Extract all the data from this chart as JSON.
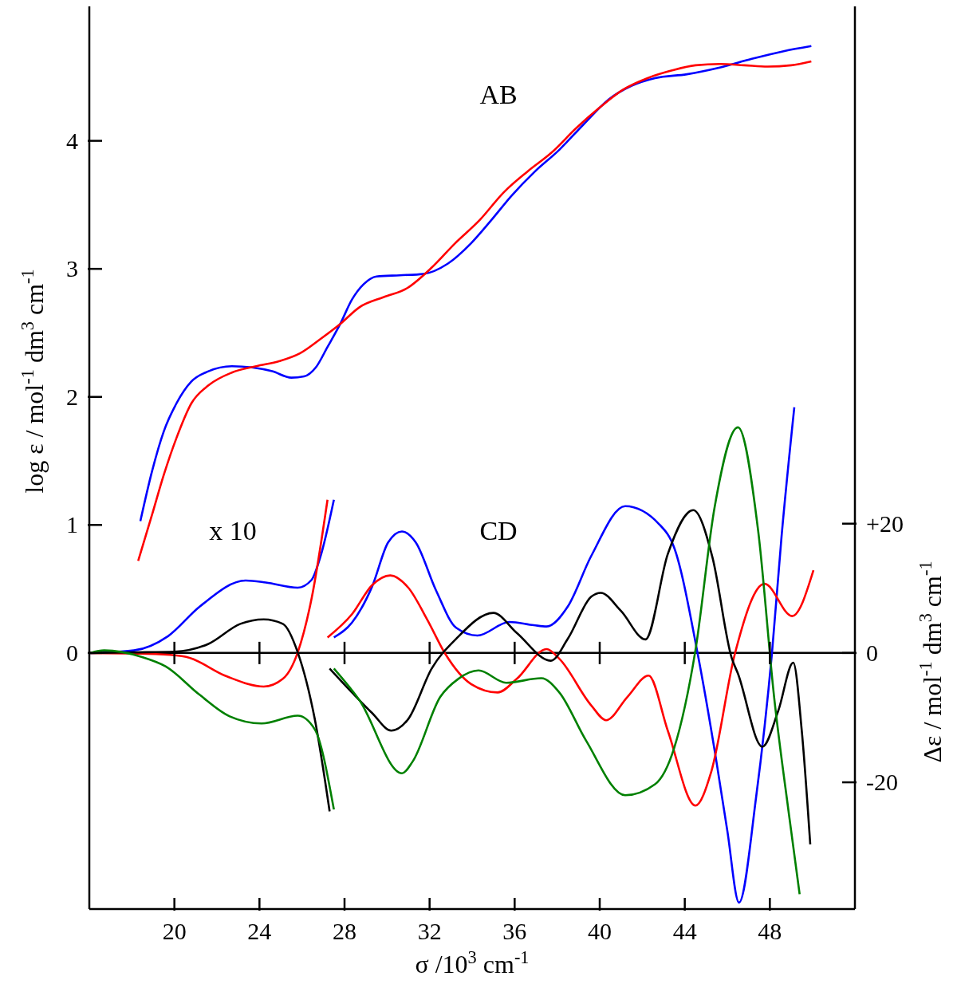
{
  "chart_data": {
    "type": "line",
    "xlabel": "σ /10$^{3}$ cm$^{-1}$",
    "ylabel": "log ε / mol$^{-1}$ dm$^{3}$ cm$^{-1}$",
    "y2label": "Δε / mol$^{-1}$ dm$^{3}$ cm$^{-1}$",
    "annotations": [
      "AB",
      "x 10",
      "CD"
    ],
    "xlim": [
      16,
      52
    ],
    "xticks": [
      20,
      24,
      28,
      32,
      36,
      40,
      44,
      48
    ],
    "ylim": [
      -2,
      5.05
    ],
    "yticks": [
      0,
      1,
      2,
      3,
      4
    ],
    "y2lim": [
      -39.6,
      100
    ],
    "y2ticks": [
      {
        "value": 20,
        "label": "+20"
      },
      0,
      -20
    ],
    "marker": "none",
    "line_style": "solid",
    "ref_lines": [
      {
        "axis": "y",
        "value": 0,
        "color": "#000000"
      }
    ],
    "series": [
      {
        "color": "#0000ff",
        "axis": "y",
        "x": [
          18.4,
          18.95,
          19.5,
          20.1,
          20.8,
          21.6,
          22.7,
          23.65,
          24.6,
          25.5,
          26.1,
          26.65,
          27.2,
          27.8,
          28.35,
          28.9,
          29.5,
          30.6,
          31.7,
          32.85,
          33.95,
          34.9,
          35.85,
          36.95,
          38.1,
          39.25,
          40.4,
          41.5,
          42.6,
          44.1,
          45.6,
          47.15,
          48.65,
          49.95
        ],
        "values": [
          1.03,
          1.42,
          1.73,
          1.95,
          2.12,
          2.2,
          2.24,
          2.23,
          2.2,
          2.15,
          2.16,
          2.23,
          2.39,
          2.57,
          2.76,
          2.88,
          2.94,
          2.95,
          2.96,
          3.04,
          3.2,
          3.38,
          3.57,
          3.76,
          3.93,
          4.13,
          4.32,
          4.43,
          4.49,
          4.52,
          4.57,
          4.64,
          4.7,
          4.74
        ]
      },
      {
        "color": "#ff0000",
        "axis": "y",
        "x": [
          18.3,
          18.95,
          19.5,
          20.1,
          20.8,
          21.6,
          22.7,
          23.85,
          24.95,
          25.9,
          26.85,
          27.8,
          28.7,
          29.85,
          30.95,
          32.1,
          33.2,
          34.35,
          35.5,
          36.6,
          37.75,
          38.9,
          40.0,
          41.1,
          42.25,
          43.4,
          44.5,
          45.65,
          46.8,
          47.9,
          49.0,
          49.95
        ],
        "values": [
          0.72,
          1.08,
          1.39,
          1.68,
          1.95,
          2.09,
          2.19,
          2.24,
          2.28,
          2.34,
          2.45,
          2.57,
          2.7,
          2.78,
          2.85,
          3.01,
          3.2,
          3.38,
          3.6,
          3.76,
          3.91,
          4.1,
          4.26,
          4.4,
          4.49,
          4.55,
          4.59,
          4.6,
          4.59,
          4.58,
          4.59,
          4.62
        ]
      },
      {
        "color": "#0000ff",
        "axis": "y2",
        "x": [
          16.05,
          18.1,
          19.7,
          21.2,
          23.35,
          24.3,
          25.8,
          26.45,
          26.85,
          27.5
        ],
        "values": [
          0,
          0.4,
          2.6,
          7.2,
          11.2,
          10.9,
          10.1,
          11.3,
          14.7,
          23.7
        ]
      },
      {
        "color": "#0000ff",
        "axis": "y2",
        "x": [
          27.5,
          28.35,
          29.3,
          30.05,
          30.7,
          31.35,
          32.3,
          33.25,
          34.25,
          35.75,
          36.9,
          37.5,
          38.5,
          39.6,
          41.2,
          42.8,
          43.5,
          44.6,
          45.45,
          46.0,
          46.55,
          47.35,
          48.1,
          48.55,
          49.15
        ],
        "values": [
          2.4,
          4.7,
          10.3,
          17.1,
          18.8,
          17.1,
          9.7,
          3.9,
          2.7,
          4.8,
          4.3,
          4.1,
          7.2,
          15.0,
          22.7,
          19.9,
          16.3,
          0,
          -16,
          -27.5,
          -38.6,
          -22.4,
          0,
          18,
          38.0
        ]
      },
      {
        "color": "#ff0000",
        "axis": "y2",
        "x": [
          16.05,
          18.5,
          19.3,
          20.55,
          22.45,
          24.2,
          25.1,
          25.8,
          26.45,
          27.2
        ],
        "values": [
          0,
          -0.1,
          -0.2,
          -0.6,
          -3.6,
          -5.2,
          -4.0,
          0.1,
          8.4,
          23.7
        ]
      },
      {
        "color": "#ff0000",
        "axis": "y2",
        "x": [
          27.2,
          28.35,
          29.3,
          30.15,
          31.0,
          31.9,
          32.75,
          33.95,
          35.2,
          36.1,
          37.5,
          38.1,
          39.6,
          40.3,
          41.3,
          42.3,
          43.2,
          44.5,
          45.25,
          46.35,
          47.75,
          49.05,
          50.05
        ],
        "values": [
          2.4,
          6.0,
          10.5,
          12.0,
          10.1,
          5.1,
          -0.2,
          -4.8,
          -6.1,
          -4.0,
          0.6,
          -0.9,
          -8.1,
          -10.4,
          -6.8,
          -3.5,
          -12.0,
          -23.6,
          -18.3,
          -0.2,
          10.7,
          5.7,
          12.8
        ]
      },
      {
        "color": "#000000",
        "axis": "y2",
        "x": [
          16.05,
          18.1,
          20.0,
          21.6,
          23.1,
          24.2,
          25.1,
          25.8,
          26.6,
          27.3
        ],
        "values": [
          0,
          0.1,
          0.2,
          1.4,
          4.5,
          5.2,
          4.5,
          0.1,
          -10.2,
          -24.5
        ]
      },
      {
        "color": "#000000",
        "axis": "y2",
        "x": [
          27.3,
          28.35,
          29.3,
          30.2,
          31.0,
          32.1,
          33.25,
          35.0,
          36.1,
          37.7,
          38.5,
          39.6,
          40.05,
          41.0,
          42.15,
          43.2,
          44.4,
          45.3,
          46.2,
          46.5,
          47.65,
          48.4,
          49.1,
          49.5,
          49.9
        ],
        "values": [
          -2.4,
          -6.1,
          -9.3,
          -12.0,
          -10.2,
          -2.4,
          2.2,
          6.2,
          3.1,
          -1.2,
          2.2,
          8.7,
          9.3,
          6.5,
          2.1,
          15.3,
          22.1,
          14.8,
          -0.7,
          -3.2,
          -14.5,
          -8.9,
          -1.5,
          -12.0,
          -29.6
        ]
      },
      {
        "color": "#008000",
        "axis": "y2",
        "x": [
          16.05,
          16.7,
          18.45,
          19.6,
          21.2,
          22.6,
          24.1,
          25.8,
          26.6,
          27.5
        ],
        "values": [
          0,
          0.4,
          -0.6,
          -2.1,
          -6.5,
          -9.8,
          -10.9,
          -9.7,
          -11.8,
          -24.2
        ]
      },
      {
        "color": "#008000",
        "axis": "y2",
        "x": [
          27.5,
          28.7,
          30.7,
          31.2,
          32.5,
          33.35,
          34.3,
          35.6,
          37.25,
          38.1,
          39.35,
          41.2,
          42.6,
          43.5,
          44.5,
          45.4,
          46.5,
          47.45,
          48.2,
          48.9,
          49.4
        ],
        "values": [
          -2.4,
          -7.3,
          -18.6,
          -16.8,
          -6.8,
          -4.0,
          -2.7,
          -4.6,
          -3.9,
          -6.1,
          -13.5,
          -22.0,
          -20.3,
          -14.7,
          0.4,
          22.5,
          34.9,
          18.9,
          -6.8,
          -25,
          -37.3
        ]
      }
    ]
  }
}
